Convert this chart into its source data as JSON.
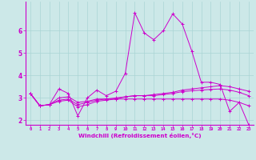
{
  "xlabel": "Windchill (Refroidissement éolien,°C)",
  "background_color": "#cce8e8",
  "grid_color": "#aad4d4",
  "line_color": "#cc00cc",
  "x_hours": [
    0,
    1,
    2,
    3,
    4,
    5,
    6,
    7,
    8,
    9,
    10,
    11,
    12,
    13,
    14,
    15,
    16,
    17,
    18,
    19,
    20,
    21,
    22,
    23
  ],
  "series_main": [
    3.2,
    2.65,
    2.7,
    3.4,
    3.2,
    2.2,
    3.0,
    3.35,
    3.1,
    3.3,
    4.1,
    6.8,
    5.9,
    5.6,
    6.0,
    6.75,
    6.3,
    5.1,
    3.7,
    3.7,
    3.6,
    2.4,
    2.8,
    1.8
  ],
  "series_linear1": [
    3.2,
    2.65,
    2.7,
    2.85,
    2.9,
    2.6,
    2.7,
    2.85,
    2.9,
    2.95,
    3.05,
    3.1,
    3.1,
    3.15,
    3.2,
    3.25,
    3.35,
    3.4,
    3.45,
    3.5,
    3.55,
    3.5,
    3.4,
    3.3
  ],
  "series_linear2": [
    3.2,
    2.65,
    2.7,
    2.9,
    2.95,
    2.7,
    2.8,
    2.9,
    2.95,
    3.0,
    3.05,
    3.1,
    3.1,
    3.1,
    3.15,
    3.2,
    3.28,
    3.32,
    3.35,
    3.38,
    3.4,
    3.35,
    3.25,
    3.1
  ],
  "series_linear3": [
    3.2,
    2.65,
    2.7,
    3.0,
    3.05,
    2.8,
    2.85,
    2.95,
    2.95,
    2.95,
    2.95,
    2.95,
    2.95,
    2.95,
    2.95,
    2.95,
    2.95,
    2.95,
    2.95,
    2.95,
    2.95,
    2.9,
    2.8,
    2.65
  ],
  "ylim": [
    1.8,
    7.3
  ],
  "yticks": [
    2,
    3,
    4,
    5,
    6
  ],
  "xticks": [
    0,
    1,
    2,
    3,
    4,
    5,
    6,
    7,
    8,
    9,
    10,
    11,
    12,
    13,
    14,
    15,
    16,
    17,
    18,
    19,
    20,
    21,
    22,
    23
  ]
}
